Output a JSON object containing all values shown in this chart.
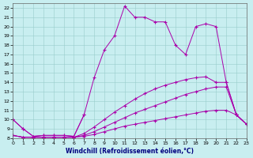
{
  "xlabel": "Windchill (Refroidissement éolien,°C)",
  "bg_color": "#c8eef0",
  "line_color": "#aa00aa",
  "grid_color": "#99cccc",
  "xlim": [
    0,
    23
  ],
  "ylim": [
    8,
    22.5
  ],
  "xticks": [
    0,
    1,
    2,
    3,
    4,
    5,
    6,
    7,
    8,
    9,
    10,
    11,
    12,
    13,
    14,
    15,
    16,
    17,
    18,
    19,
    20,
    21,
    22,
    23
  ],
  "yticks": [
    8,
    9,
    10,
    11,
    12,
    13,
    14,
    15,
    16,
    17,
    18,
    19,
    20,
    21,
    22
  ],
  "curves": [
    {
      "x": [
        0,
        1,
        2,
        3,
        4,
        5,
        6,
        7
      ],
      "y": [
        10.0,
        9.0,
        8.2,
        8.3,
        8.3,
        8.3,
        8.2,
        10.5
      ]
    },
    {
      "x": [
        0,
        1,
        2,
        3,
        4,
        5,
        6,
        7,
        8,
        9,
        10,
        11,
        12,
        13,
        14,
        15,
        16,
        17,
        18,
        19,
        20,
        21,
        22,
        23
      ],
      "y": [
        8.3,
        8.1,
        8.1,
        8.1,
        8.1,
        8.1,
        8.1,
        8.2,
        8.4,
        8.7,
        9.0,
        9.3,
        9.5,
        9.7,
        9.9,
        10.1,
        10.3,
        10.5,
        10.7,
        10.9,
        11.0,
        11.0,
        10.5,
        9.5
      ]
    },
    {
      "x": [
        0,
        1,
        2,
        3,
        4,
        5,
        6,
        7,
        8,
        9,
        10,
        11,
        12,
        13,
        14,
        15,
        16,
        17,
        18,
        19,
        20,
        21,
        22,
        23
      ],
      "y": [
        8.3,
        8.1,
        8.1,
        8.1,
        8.1,
        8.1,
        8.1,
        8.3,
        8.7,
        9.2,
        9.7,
        10.2,
        10.7,
        11.1,
        11.5,
        11.9,
        12.3,
        12.7,
        13.0,
        13.3,
        13.5,
        13.5,
        10.5,
        9.5
      ]
    },
    {
      "x": [
        0,
        1,
        2,
        3,
        4,
        5,
        6,
        7,
        8,
        9,
        10,
        11,
        12,
        13,
        14,
        15,
        16,
        17,
        18,
        19,
        20,
        21,
        22,
        23
      ],
      "y": [
        8.3,
        8.1,
        8.1,
        8.1,
        8.1,
        8.1,
        8.1,
        8.5,
        9.2,
        10.0,
        10.8,
        11.5,
        12.2,
        12.8,
        13.3,
        13.7,
        14.0,
        14.3,
        14.5,
        14.6,
        14.0,
        14.0,
        10.5,
        9.5
      ]
    },
    {
      "x": [
        0,
        1,
        2,
        3,
        4,
        5,
        6,
        7,
        8,
        9,
        10,
        11,
        12,
        13,
        14,
        15,
        16,
        17,
        18,
        19,
        20,
        21,
        22,
        23
      ],
      "y": [
        10.0,
        9.0,
        8.2,
        8.3,
        8.3,
        8.3,
        8.2,
        10.5,
        14.5,
        17.5,
        19.0,
        22.2,
        21.0,
        21.0,
        20.5,
        20.5,
        18.0,
        17.0,
        20.0,
        20.3,
        20.0,
        14.0,
        10.5,
        9.5
      ]
    }
  ]
}
